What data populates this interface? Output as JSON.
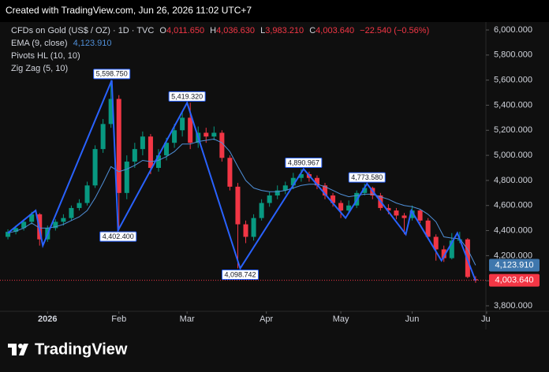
{
  "credit": "Created with TradingView.com, Jun 26, 2026 11:02 UTC+7",
  "brand": "TradingView",
  "chart_data": {
    "type": "candlestick",
    "header": {
      "symbol": "CFDs on Gold (US$ / OZ) · 1D · TVC",
      "ohlc": [
        {
          "label": "O",
          "value": "4,011.650"
        },
        {
          "label": "H",
          "value": "4,036.630"
        },
        {
          "label": "L",
          "value": "3,983.210"
        },
        {
          "label": "C",
          "value": "4,003.640"
        }
      ],
      "change": "−22.540 (−0.56%)",
      "indicators": [
        "Pivots HL (10, 10)",
        "Zig Zag (5, 10)"
      ]
    },
    "open": [
      4350,
      4390,
      4420,
      4470,
      4530,
      4330,
      4420,
      4470,
      4500,
      4580,
      4620,
      4760,
      5050,
      5250,
      5450,
      4700,
      4950,
      5050,
      5150,
      4900,
      5000,
      5100,
      5200,
      5300,
      5100,
      5180,
      5150,
      5180,
      4980,
      4750,
      4450,
      4350,
      4500,
      4620,
      4680,
      4720,
      4760,
      4820,
      4850,
      4820,
      4760,
      4680,
      4620,
      4560,
      4600,
      4700,
      4740,
      4680,
      4580,
      4560,
      4520,
      4500,
      4560,
      4480,
      4350,
      4250,
      4180,
      4320,
      4330,
      4011.65
    ],
    "high": [
      4410,
      4440,
      4490,
      4550,
      4540,
      4440,
      4490,
      4530,
      4600,
      4650,
      4790,
      5080,
      5290,
      5598.75,
      5480,
      5000,
      5100,
      5190,
      5170,
      5050,
      5140,
      5250,
      5350,
      5419.32,
      5230,
      5220,
      5230,
      5200,
      5000,
      4780,
      4480,
      4530,
      4650,
      4710,
      4760,
      4790,
      4860,
      4890.967,
      4870,
      4840,
      4780,
      4700,
      4640,
      4640,
      4720,
      4773.58,
      4750,
      4700,
      4610,
      4580,
      4540,
      4600,
      4570,
      4500,
      4370,
      4280,
      4380,
      4390,
      4340,
      4036.63
    ],
    "low": [
      4330,
      4370,
      4400,
      4450,
      4280,
      4310,
      4400,
      4440,
      4480,
      4560,
      4600,
      4740,
      5020,
      5220,
      4402.4,
      4650,
      4900,
      5000,
      4850,
      4870,
      4960,
      5060,
      5150,
      5050,
      5060,
      5100,
      5120,
      4950,
      4720,
      4098.742,
      4300,
      4320,
      4480,
      4590,
      4650,
      4690,
      4730,
      4790,
      4790,
      4730,
      4650,
      4590,
      4500,
      4540,
      4580,
      4680,
      4650,
      4560,
      4530,
      4490,
      4370,
      4480,
      4460,
      4330,
      4160,
      4150,
      4170,
      4300,
      4020,
      3983.21
    ],
    "close": [
      4390,
      4420,
      4470,
      4530,
      4330,
      4420,
      4470,
      4500,
      4580,
      4620,
      4760,
      5050,
      5250,
      5450,
      4700,
      4950,
      5050,
      5150,
      4900,
      5000,
      5100,
      5200,
      5300,
      5100,
      5180,
      5150,
      5180,
      4980,
      4750,
      4450,
      4350,
      4500,
      4620,
      4680,
      4720,
      4760,
      4820,
      4850,
      4820,
      4760,
      4680,
      4620,
      4560,
      4600,
      4700,
      4740,
      4680,
      4580,
      4560,
      4520,
      4500,
      4560,
      4480,
      4350,
      4250,
      4180,
      4320,
      4330,
      4030,
      4003.64
    ],
    "up_color": "#089981",
    "down_color": "#f23645",
    "last_label": "4,003.640",
    "ema": {
      "name": "EMA (9, close)",
      "color": "#4f8fd8",
      "last_label": "4,123.910",
      "values": [
        4380,
        4395,
        4420,
        4460,
        4420,
        4420,
        4430,
        4450,
        4480,
        4510,
        4560,
        4660,
        4780,
        4910,
        4870,
        4890,
        4920,
        4960,
        4950,
        4960,
        4990,
        5030,
        5090,
        5090,
        5110,
        5120,
        5130,
        5100,
        5030,
        4910,
        4800,
        4740,
        4720,
        4710,
        4710,
        4720,
        4740,
        4760,
        4770,
        4770,
        4750,
        4720,
        4690,
        4670,
        4680,
        4690,
        4690,
        4670,
        4650,
        4620,
        4600,
        4590,
        4570,
        4530,
        4470,
        4350,
        4340,
        4335,
        4250,
        4123.91
      ]
    },
    "zigzag": {
      "color": "#2962ff",
      "x": [
        0,
        3.5,
        4.4,
        13.1,
        13.9,
        22.6,
        29.3,
        37.3,
        42.6,
        45.3,
        50.2,
        50.9,
        54.7,
        56.7,
        59
      ],
      "values": [
        4380,
        4560,
        4280,
        5598.75,
        4402.4,
        5419.32,
        4098.742,
        4890.967,
        4500,
        4773.58,
        4370,
        4560,
        4160,
        4380,
        4000
      ],
      "value_labels": [
        null,
        null,
        null,
        "5,598.750",
        "4,402.400",
        "5,419.320",
        "4,098.742",
        "4,890.967",
        null,
        "4,773.580",
        null,
        null,
        null,
        null,
        null
      ]
    },
    "xlim": [
      -1,
      60.3
    ],
    "xticks": [
      {
        "value": 5,
        "label": "2026"
      },
      {
        "value": 14,
        "label": "Feb"
      },
      {
        "value": 22.6,
        "label": "Mar"
      },
      {
        "value": 32.6,
        "label": "Apr"
      },
      {
        "value": 42,
        "label": "May"
      },
      {
        "value": 51,
        "label": "Jun"
      },
      {
        "value": 60.4,
        "label": "Jul"
      }
    ],
    "ylim": [
      3756,
      6063
    ],
    "yticks": [
      {
        "value": 3800,
        "label": "3,800.000"
      },
      {
        "value": 4000,
        "label": "4,000.000"
      },
      {
        "value": 4200,
        "label": "4,200.000"
      },
      {
        "value": 4400,
        "label": "4,400.000"
      },
      {
        "value": 4600,
        "label": "4,600.000"
      },
      {
        "value": 4800,
        "label": "4,800.000"
      },
      {
        "value": 5000,
        "label": "5,000.000"
      },
      {
        "value": 5200,
        "label": "5,200.000"
      },
      {
        "value": 5400,
        "label": "5,400.000"
      },
      {
        "value": 5600,
        "label": "5,600.000"
      },
      {
        "value": 5800,
        "label": "5,800.000"
      },
      {
        "value": 6000,
        "label": "6,000.000"
      }
    ],
    "grid": false
  }
}
